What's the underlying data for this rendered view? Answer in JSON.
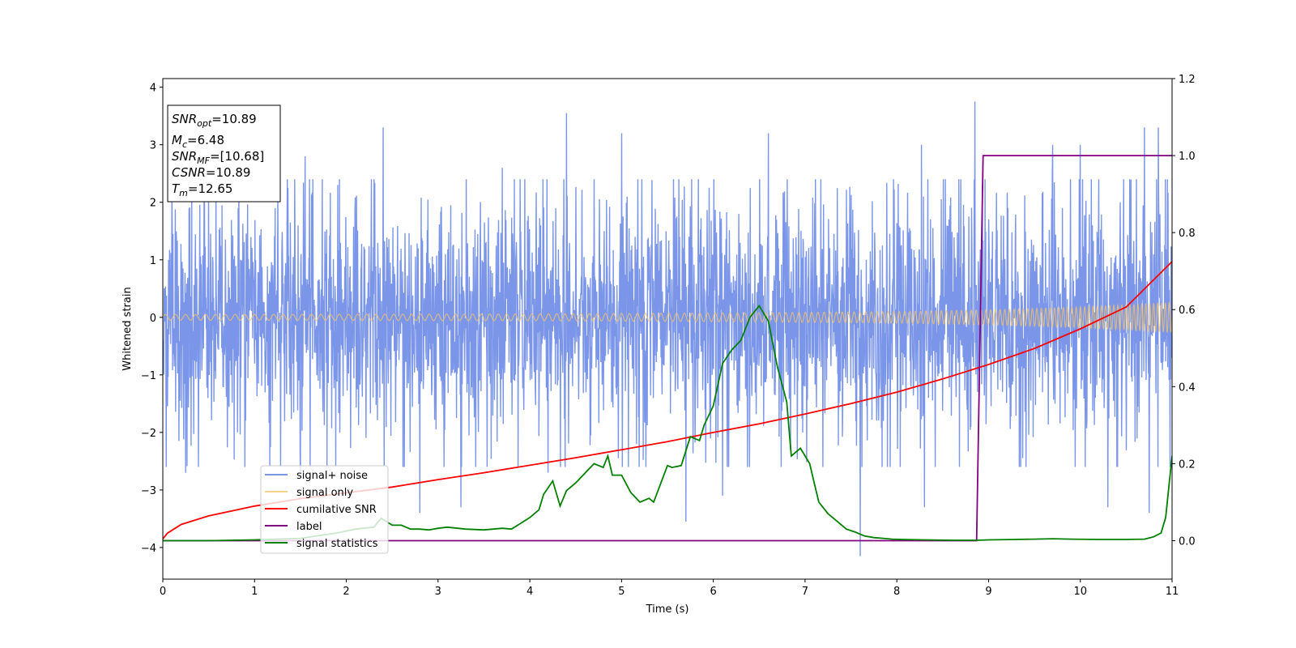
{
  "chart_data": {
    "type": "line",
    "title": "",
    "xlabel": "Time (s)",
    "ylabel": "Whitened strain",
    "y2label": "",
    "xlim": [
      0,
      11
    ],
    "ylim": [
      -4.55,
      4.15
    ],
    "y2lim": [
      -0.1,
      1.2
    ],
    "xticks": [
      0,
      1,
      2,
      3,
      4,
      5,
      6,
      7,
      8,
      9,
      10,
      11
    ],
    "yticks": [
      -4,
      -3,
      -2,
      -1,
      0,
      1,
      2,
      3,
      4
    ],
    "y2ticks": [
      0.0,
      0.2,
      0.4,
      0.6,
      0.8,
      1.0,
      1.2
    ],
    "grid": false,
    "legend_position": "lower-left",
    "info_box": {
      "snr_opt": {
        "base": "SNR",
        "sub": "opt",
        "value": "=10.89"
      },
      "mc": {
        "base": "M",
        "sub": "c",
        "value": "=6.48"
      },
      "snr_mf": {
        "base": "SNR",
        "sub": "MF",
        "value": "=[10.68]"
      },
      "csnr": {
        "base": "CSNR",
        "value": "=10.89"
      },
      "tm": {
        "base": "T",
        "sub": "m",
        "value": "=12.65"
      }
    },
    "series": [
      {
        "name": "signal+ noise",
        "axis": "left",
        "color": "#7b96e8",
        "noise_envelope": {
          "typical_amplitude": 1.3,
          "max_peak": 3.75,
          "min_trough": -4.15,
          "peaks": [
            [
              0.1,
              2.2
            ],
            [
              0.45,
              2.6
            ],
            [
              1.55,
              2.8
            ],
            [
              2.4,
              3.3
            ],
            [
              3.7,
              2.6
            ],
            [
              4.4,
              3.55
            ],
            [
              5.0,
              3.2
            ],
            [
              5.7,
              3.1
            ],
            [
              6.6,
              3.2
            ],
            [
              7.6,
              3.2
            ],
            [
              8.27,
              3.0
            ],
            [
              8.85,
              3.75
            ],
            [
              9.7,
              3.0
            ],
            [
              10.0,
              3.0
            ],
            [
              10.7,
              3.3
            ],
            [
              10.85,
              3.3
            ]
          ],
          "troughs": [
            [
              0.25,
              -2.7
            ],
            [
              1.5,
              -2.7
            ],
            [
              2.8,
              -3.4
            ],
            [
              3.25,
              -3.3
            ],
            [
              4.2,
              -2.7
            ],
            [
              5.7,
              -3.55
            ],
            [
              6.1,
              -3.1
            ],
            [
              7.6,
              -4.15
            ],
            [
              8.3,
              -3.3
            ],
            [
              10.3,
              -3.3
            ],
            [
              10.75,
              -3.4
            ]
          ]
        }
      },
      {
        "name": "signal only",
        "axis": "left",
        "color": "#f4c36a",
        "amplitude_envelope": [
          [
            0,
            0.05
          ],
          [
            2,
            0.055
          ],
          [
            4,
            0.06
          ],
          [
            6,
            0.075
          ],
          [
            8,
            0.1
          ],
          [
            9,
            0.13
          ],
          [
            10,
            0.18
          ],
          [
            11,
            0.26
          ]
        ],
        "frequency_hz": [
          [
            0,
            9
          ],
          [
            6,
            12
          ],
          [
            11,
            24
          ]
        ]
      },
      {
        "name": "cumilative SNR",
        "axis": "left",
        "color": "#ff0000",
        "x": [
          0,
          0.05,
          0.2,
          0.5,
          1,
          1.5,
          2,
          2.5,
          3,
          3.5,
          4,
          4.5,
          5,
          5.5,
          6,
          6.5,
          7,
          7.5,
          8,
          8.5,
          9,
          9.5,
          10,
          10.5,
          11
        ],
        "y": [
          -3.85,
          -3.75,
          -3.6,
          -3.45,
          -3.28,
          -3.15,
          -3.05,
          -2.95,
          -2.82,
          -2.7,
          -2.57,
          -2.44,
          -2.3,
          -2.16,
          -2.0,
          -1.85,
          -1.68,
          -1.5,
          -1.3,
          -1.07,
          -0.82,
          -0.54,
          -0.2,
          0.18,
          0.97
        ]
      },
      {
        "name": "label",
        "axis": "right",
        "color": "#800080",
        "x": [
          0,
          8.87,
          8.94,
          11
        ],
        "y": [
          0,
          0,
          1,
          1
        ]
      },
      {
        "name": "signal statistics",
        "axis": "right",
        "color": "#008000",
        "x": [
          0,
          0.5,
          1,
          1.5,
          1.9,
          2.1,
          2.3,
          2.38,
          2.5,
          2.6,
          2.7,
          2.8,
          2.9,
          3.0,
          3.1,
          3.3,
          3.5,
          3.7,
          3.8,
          3.9,
          4.0,
          4.1,
          4.15,
          4.25,
          4.33,
          4.4,
          4.5,
          4.6,
          4.7,
          4.8,
          4.85,
          4.9,
          5.0,
          5.1,
          5.2,
          5.3,
          5.35,
          5.5,
          5.55,
          5.65,
          5.75,
          5.85,
          5.9,
          6.0,
          6.1,
          6.2,
          6.3,
          6.4,
          6.5,
          6.6,
          6.7,
          6.8,
          6.85,
          6.95,
          7.05,
          7.1,
          7.15,
          7.25,
          7.35,
          7.45,
          7.55,
          7.65,
          7.75,
          7.85,
          7.95,
          8.05,
          8.3,
          8.6,
          8.88,
          9.0,
          9.3,
          9.5,
          9.7,
          9.9,
          10.2,
          10.5,
          10.7,
          10.8,
          10.88,
          10.93,
          11.0
        ],
        "y": [
          0.0,
          0.0,
          0.002,
          0.006,
          0.02,
          0.03,
          0.035,
          0.058,
          0.04,
          0.04,
          0.03,
          0.03,
          0.028,
          0.032,
          0.035,
          0.03,
          0.028,
          0.032,
          0.03,
          0.045,
          0.06,
          0.08,
          0.12,
          0.155,
          0.09,
          0.13,
          0.15,
          0.175,
          0.2,
          0.19,
          0.22,
          0.17,
          0.17,
          0.125,
          0.1,
          0.11,
          0.1,
          0.195,
          0.19,
          0.195,
          0.27,
          0.26,
          0.3,
          0.35,
          0.46,
          0.495,
          0.52,
          0.58,
          0.61,
          0.57,
          0.45,
          0.36,
          0.22,
          0.24,
          0.2,
          0.15,
          0.1,
          0.07,
          0.05,
          0.03,
          0.022,
          0.012,
          0.008,
          0.006,
          0.004,
          0.003,
          0.002,
          0.001,
          0.001,
          0.002,
          0.003,
          0.004,
          0.005,
          0.004,
          0.003,
          0.003,
          0.004,
          0.01,
          0.02,
          0.06,
          0.22
        ]
      }
    ]
  }
}
